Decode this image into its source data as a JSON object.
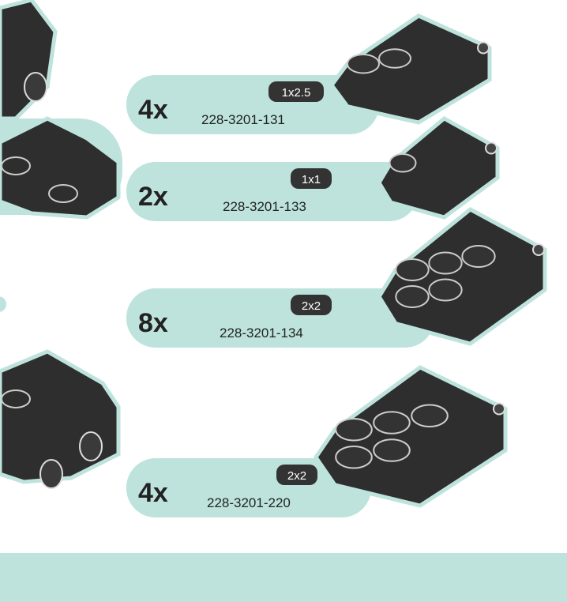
{
  "items": [
    {
      "quantity": "4x",
      "size": "1x2.5",
      "part_number": "228-3201-131"
    },
    {
      "quantity": "2x",
      "size": "1x1",
      "part_number": "228-3201-133"
    },
    {
      "quantity": "8x",
      "size": "2x2",
      "part_number": "228-3201-134"
    },
    {
      "quantity": "4x",
      "size": "2x2",
      "part_number": "228-3201-220"
    }
  ]
}
